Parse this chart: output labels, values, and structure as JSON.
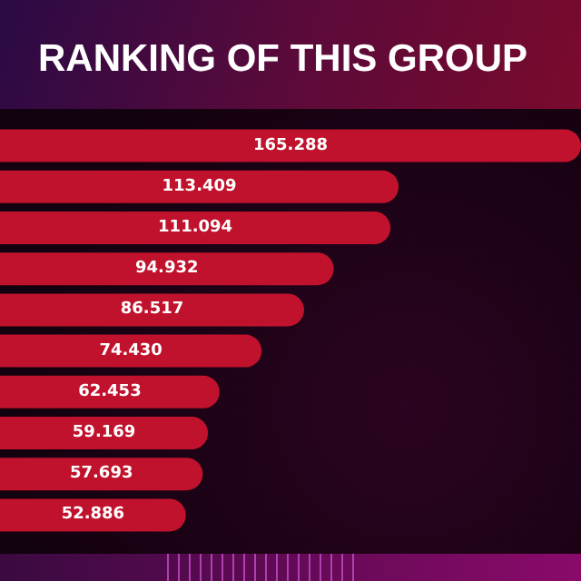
{
  "chart_data": {
    "type": "bar",
    "orientation": "horizontal",
    "title": "RANKING OF THIS GROUP",
    "categories": [
      null,
      null,
      null,
      null,
      null,
      null,
      null,
      null,
      null,
      null
    ],
    "values": [
      165.288,
      113.409,
      111.094,
      94.932,
      86.517,
      74.43,
      62.453,
      59.169,
      57.693,
      52.886
    ],
    "value_labels": [
      "165.288",
      "113.409",
      "111.094",
      "94.932",
      "86.517",
      "74.430",
      "62.453",
      "59.169",
      "57.693",
      "52.886"
    ],
    "color": "#c0122c"
  }
}
